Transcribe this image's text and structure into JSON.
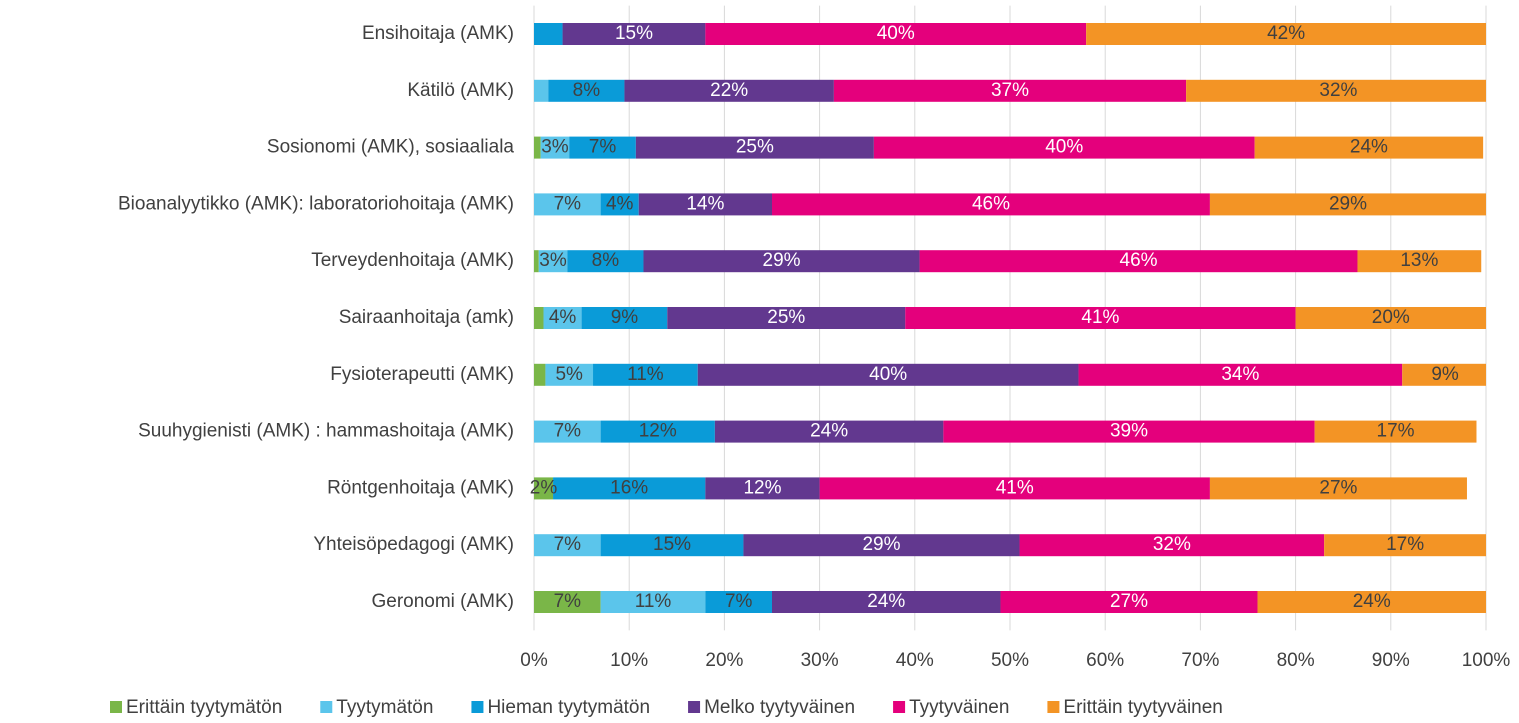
{
  "chart_data": {
    "type": "stacked-bar-horizontal",
    "categories": [
      "Ensihoitaja (AMK)",
      "Kätilö (AMK)",
      "Sosionomi (AMK), sosiaaliala",
      "Bioanalyytikko (AMK): laboratoriohoitaja (AMK)",
      "Terveydenhoitaja (AMK)",
      "Sairaanhoitaja (amk)",
      "Fysioterapeutti (AMK)",
      "Suuhygienisti (AMK) : hammashoitaja (AMK)",
      "Röntgenhoitaja (AMK)",
      "Yhteisöpedagogi (AMK)",
      "Geronomi (AMK)"
    ],
    "series": [
      {
        "name": "Erittäin tyytymätön",
        "color": "#7ab648",
        "values": [
          0,
          0,
          0.7,
          0,
          0.5,
          1,
          1.2,
          0,
          2,
          0,
          7
        ],
        "value_labels": [
          null,
          null,
          null,
          null,
          null,
          null,
          null,
          null,
          "2%",
          null,
          "7%"
        ]
      },
      {
        "name": "Tyytymätön",
        "color": "#5bc5eb",
        "values": [
          0,
          1.5,
          3,
          7,
          3,
          4,
          5,
          7,
          0,
          7,
          11
        ],
        "value_labels": [
          null,
          null,
          "3%",
          "7%",
          "3%",
          "4%",
          "5%",
          "7%",
          null,
          "7%",
          "11%"
        ]
      },
      {
        "name": "Hieman tyytymätön",
        "color": "#0a9bd8",
        "values": [
          3,
          8,
          7,
          4,
          8,
          9,
          11,
          12,
          16,
          15,
          7
        ],
        "value_labels": [
          null,
          "8%",
          "7%",
          "4%",
          "8%",
          "9%",
          "11%",
          "12%",
          "16%",
          "15%",
          "7%"
        ]
      },
      {
        "name": "Melko tyytyväinen",
        "color": "#62388f",
        "values": [
          15,
          22,
          25,
          14,
          29,
          25,
          40,
          24,
          12,
          29,
          24
        ],
        "value_labels": [
          "15%",
          "22%",
          "25%",
          "14%",
          "29%",
          "25%",
          "40%",
          "24%",
          "12%",
          "29%",
          "24%"
        ]
      },
      {
        "name": "Tyytyväinen",
        "color": "#e4007c",
        "values": [
          40,
          37,
          40,
          46,
          46,
          41,
          34,
          39,
          41,
          32,
          27
        ],
        "value_labels": [
          "40%",
          "37%",
          "40%",
          "46%",
          "46%",
          "41%",
          "34%",
          "39%",
          "41%",
          "32%",
          "27%"
        ]
      },
      {
        "name": "Erittäin tyytyväinen",
        "color": "#f39425",
        "values": [
          42,
          32,
          24,
          29,
          13,
          20,
          9,
          17,
          27,
          17,
          24
        ],
        "value_labels": [
          "42%",
          "32%",
          "24%",
          "29%",
          "13%",
          "20%",
          "9%",
          "17%",
          "27%",
          "17%",
          "24%"
        ]
      }
    ],
    "xlim": [
      0,
      100
    ],
    "xticks": [
      {
        "value": 0,
        "label": "0%"
      },
      {
        "value": 10,
        "label": "10%"
      },
      {
        "value": 20,
        "label": "20%"
      },
      {
        "value": 30,
        "label": "30%"
      },
      {
        "value": 40,
        "label": "40%"
      },
      {
        "value": 50,
        "label": "50%"
      },
      {
        "value": 60,
        "label": "60%"
      },
      {
        "value": 70,
        "label": "70%"
      },
      {
        "value": 80,
        "label": "80%"
      },
      {
        "value": 90,
        "label": "90%"
      },
      {
        "value": 100,
        "label": "100%"
      }
    ],
    "grid": true,
    "legend": "bottom"
  }
}
